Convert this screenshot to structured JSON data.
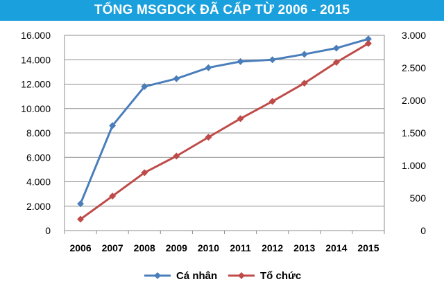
{
  "chart_data": {
    "type": "line",
    "title": "TỔNG MSGDCK ĐÃ CẤP TỪ 2006 - 2015",
    "categories": [
      "2006",
      "2007",
      "2008",
      "2009",
      "2010",
      "2011",
      "2012",
      "2013",
      "2014",
      "2015"
    ],
    "left_axis": {
      "ylim": [
        0,
        16000
      ],
      "ticks": [
        0,
        2000,
        4000,
        6000,
        8000,
        10000,
        12000,
        14000,
        16000
      ],
      "tick_labels": [
        "0",
        "2.000",
        "4.000",
        "6.000",
        "8.000",
        "10.000",
        "12.000",
        "14.000",
        "16.000"
      ]
    },
    "right_axis": {
      "ylim": [
        0,
        3000
      ],
      "ticks": [
        0,
        500,
        1000,
        1500,
        2000,
        2500,
        3000
      ],
      "tick_labels": [
        "0",
        "500",
        "1.000",
        "1.500",
        "2.000",
        "2.500",
        "3.000"
      ]
    },
    "series": [
      {
        "name": "Cá nhân",
        "axis": "left",
        "color": "#4a7ebb",
        "values": [
          2200,
          8600,
          11800,
          12450,
          13350,
          13850,
          14000,
          14450,
          14950,
          15700
        ]
      },
      {
        "name": "Tổ chức",
        "axis": "right",
        "color": "#be4b48",
        "values": [
          175,
          530,
          890,
          1145,
          1435,
          1720,
          1985,
          2265,
          2585,
          2875
        ]
      }
    ],
    "grid": true,
    "legend_position": "bottom"
  }
}
